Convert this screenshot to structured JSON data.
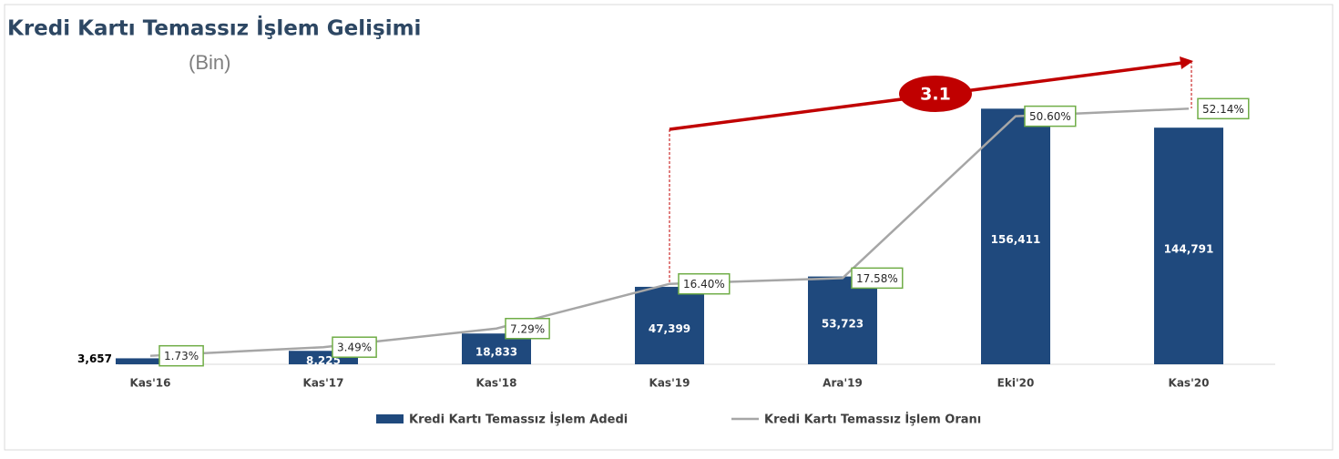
{
  "chart_data": {
    "type": "bar",
    "title": "Kredi Kartı Temassız İşlem Gelişimi",
    "subtitle": "(Bin)",
    "categories": [
      "Kas'16",
      "Kas'17",
      "Kas'18",
      "Kas'19",
      "Ara'19",
      "Eki'20",
      "Kas'20"
    ],
    "series": [
      {
        "name": "Kredi Kartı Temassız İşlem Adedi",
        "type": "bar",
        "color": "#1f497d",
        "values": [
          3657,
          8225,
          18833,
          47399,
          53723,
          156411,
          144791
        ],
        "value_labels": [
          "3,657",
          "8,225",
          "18,833",
          "47,399",
          "53,723",
          "156,411",
          "144,791"
        ]
      },
      {
        "name": "Kredi Kartı Temassız İşlem Oranı",
        "type": "line",
        "axis": "y2",
        "color": "#a6a6a6",
        "values": [
          1.73,
          3.49,
          7.29,
          16.4,
          17.58,
          50.6,
          52.14
        ],
        "value_labels": [
          "1.73%",
          "3.49%",
          "7.29%",
          "16.40%",
          "17.58%",
          "50.60%",
          "52.14%"
        ]
      }
    ],
    "ylim": [
      0,
      180000
    ],
    "y2lim": [
      0,
      60
    ],
    "annotations": [
      "3.1"
    ],
    "legend": "bottom"
  }
}
